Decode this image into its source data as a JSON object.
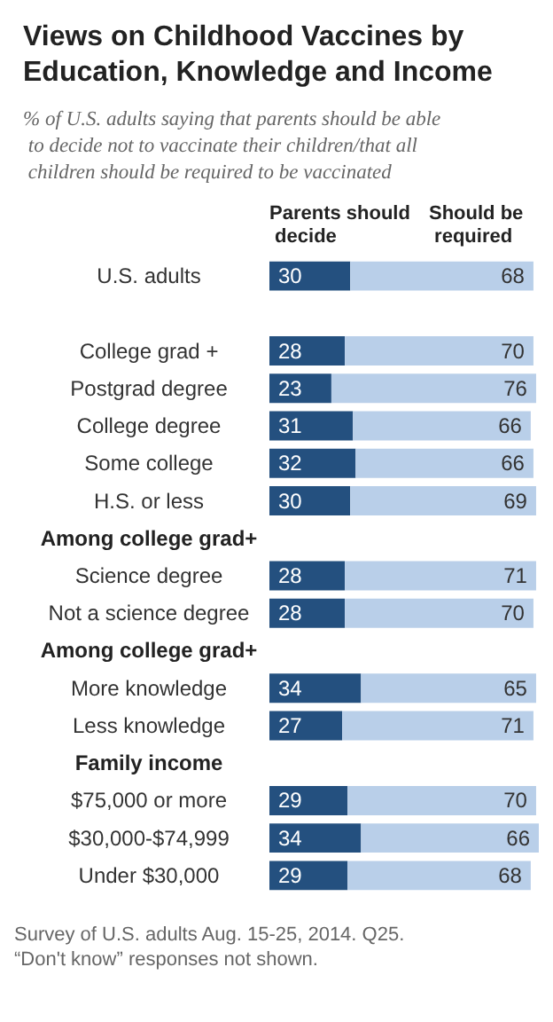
{
  "chart_data": {
    "type": "bar",
    "orientation": "horizontal",
    "stacked": true,
    "title": "Views on Childhood Vaccines by Education, Knowledge and Income",
    "subtitle": "% of U.S. adults saying that parents should be able to decide not to vaccinate their children/that all children should be required to be vaccinated",
    "categories": [
      "U.S. adults",
      null,
      "College grad +",
      "Postgrad degree",
      "College degree",
      "Some college",
      "H.S. or less",
      "Among college grad+",
      "Science degree",
      "Not a science degree",
      "Among college grad+",
      "More knowledge",
      "Less knowledge",
      "Family income",
      "$75,000 or more",
      "$30,000-$74,999",
      "Under $30,000"
    ],
    "series": [
      {
        "name": "Parents should decide",
        "color": "#24507f",
        "values": [
          30,
          null,
          28,
          23,
          31,
          32,
          30,
          null,
          28,
          28,
          null,
          34,
          27,
          null,
          29,
          34,
          29
        ]
      },
      {
        "name": "Should be required",
        "color": "#b9cfe9",
        "values": [
          68,
          null,
          70,
          76,
          66,
          66,
          69,
          null,
          71,
          70,
          null,
          65,
          71,
          null,
          70,
          66,
          68
        ]
      }
    ],
    "data_labels": true,
    "legend": false,
    "annotations": [
      "Survey of U.S. adults Aug. 15-25, 2014. Q25. “Don't know” responses not shown."
    ]
  }
}
